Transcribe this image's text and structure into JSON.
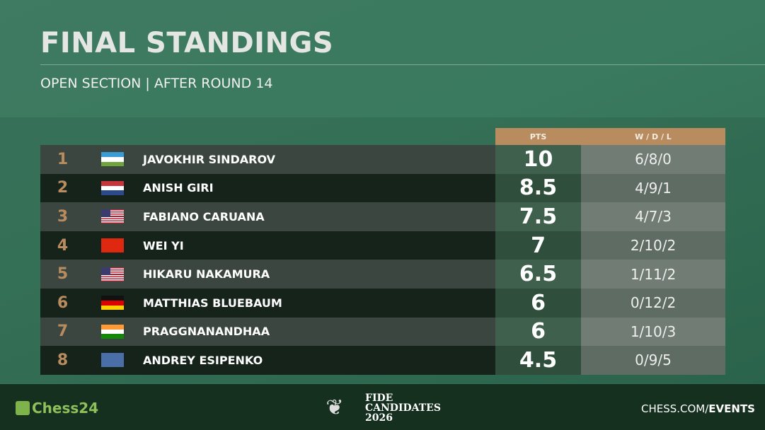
{
  "header": {
    "title": "FINAL STANDINGS",
    "subtitle": "OPEN SECTION | AFTER ROUND 14"
  },
  "table": {
    "columns": {
      "pts": "PTS",
      "wdl": "W / D / L"
    },
    "rows": [
      {
        "rank": "1",
        "flag": "uzbekistan",
        "name": "JAVOKHIR SINDAROV",
        "pts": "10",
        "wdl": "6/8/0"
      },
      {
        "rank": "2",
        "flag": "netherlands",
        "name": "ANISH GIRI",
        "pts": "8.5",
        "wdl": "4/9/1"
      },
      {
        "rank": "3",
        "flag": "usa",
        "name": "FABIANO CARUANA",
        "pts": "7.5",
        "wdl": "4/7/3"
      },
      {
        "rank": "4",
        "flag": "china",
        "name": "WEI YI",
        "pts": "7",
        "wdl": "2/10/2"
      },
      {
        "rank": "5",
        "flag": "usa",
        "name": "HIKARU NAKAMURA",
        "pts": "6.5",
        "wdl": "1/11/2"
      },
      {
        "rank": "6",
        "flag": "germany",
        "name": "MATTHIAS BLUEBAUM",
        "pts": "6",
        "wdl": "0/12/2"
      },
      {
        "rank": "7",
        "flag": "india",
        "name": "PRAGGNANANDHAA",
        "pts": "6",
        "wdl": "1/10/3"
      },
      {
        "rank": "8",
        "flag": "fide",
        "name": "ANDREY ESIPENKO",
        "pts": "4.5",
        "wdl": "0/9/5"
      }
    ]
  },
  "footer": {
    "left_logo": "Chess24",
    "center_line1": "FIDE",
    "center_line2": "CANDIDATES",
    "center_line3": "2026",
    "right_prefix": "CHESS.COM/",
    "right_bold": "EVENTS"
  },
  "colors": {
    "accent": "#b98c5f",
    "background": "#3a7a5e"
  }
}
